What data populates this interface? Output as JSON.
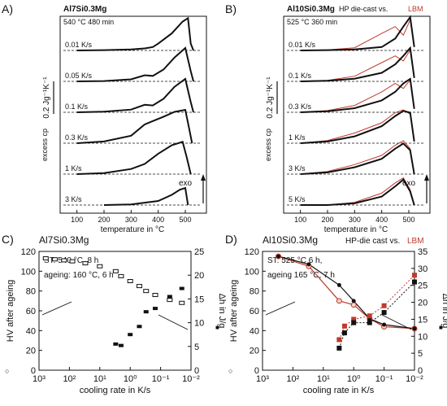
{
  "colors": {
    "die_cast": "#111111",
    "lbm": "#c0392b",
    "baseline": "#111111"
  },
  "chart_data": [
    {
      "panel": "A)",
      "type": "line",
      "title": "Al7Si0.3Mg",
      "subtitle": "540 °C  480 min",
      "xlabel": "temperature in °C",
      "ylabel": "excess cp",
      "scale_label": "0.2 Jg⁻¹K⁻¹",
      "annotation": "exo",
      "xlim": [
        50,
        560
      ],
      "xticks": [
        100,
        200,
        300,
        400,
        500
      ],
      "series": [
        {
          "name": "0.01 K/s",
          "x": [
            100,
            200,
            300,
            350,
            380,
            400,
            450,
            490,
            510,
            520,
            530
          ],
          "y": [
            0.0,
            0.01,
            0.03,
            0.06,
            0.1,
            0.2,
            0.5,
            0.85,
            0.95,
            0.2,
            0.0
          ]
        },
        {
          "name": "0.05 K/s",
          "x": [
            100,
            200,
            300,
            350,
            380,
            420,
            460,
            500,
            520,
            530
          ],
          "y": [
            0.0,
            0.01,
            0.06,
            0.18,
            0.16,
            0.35,
            0.7,
            0.98,
            0.3,
            0.0
          ]
        },
        {
          "name": "0.1 K/s",
          "x": [
            100,
            200,
            300,
            350,
            380,
            420,
            460,
            500,
            520,
            530
          ],
          "y": [
            0.0,
            0.02,
            0.08,
            0.22,
            0.2,
            0.4,
            0.75,
            0.98,
            0.3,
            0.0
          ]
        },
        {
          "name": "0.3 K/s",
          "x": [
            100,
            200,
            300,
            350,
            380,
            420,
            460,
            500,
            515,
            525
          ],
          "y": [
            0.0,
            0.05,
            0.22,
            0.55,
            0.65,
            0.78,
            0.92,
            0.98,
            0.4,
            0.0
          ]
        },
        {
          "name": "1 K/s",
          "x": [
            100,
            200,
            300,
            350,
            400,
            450,
            490,
            505,
            520
          ],
          "y": [
            0.0,
            0.03,
            0.15,
            0.3,
            0.6,
            0.85,
            0.95,
            0.5,
            0.0
          ]
        },
        {
          "name": "3 K/s",
          "x": [
            200,
            300,
            400,
            450,
            480,
            500,
            510
          ],
          "y": [
            0.0,
            0.02,
            0.12,
            0.3,
            0.45,
            0.5,
            0.0
          ]
        }
      ]
    },
    {
      "panel": "B)",
      "type": "line",
      "title": "Al10Si0.3Mg",
      "title_suffix": "HP die-cast vs.",
      "title_highlight": "LBM",
      "subtitle": "525 °C  360 min",
      "xlabel": "temperature in °C",
      "ylabel": "excess cp",
      "scale_label": "0.2 Jg⁻¹K⁻¹",
      "annotation": "exo",
      "xlim": [
        50,
        560
      ],
      "xticks": [
        100,
        200,
        300,
        400,
        500
      ],
      "series": [
        {
          "name": "0.01 K/s",
          "die_cast_y": [
            0.0,
            0.01,
            0.03,
            0.1,
            0.35,
            0.7,
            0.98,
            0.1
          ],
          "lbm_y": [
            0.0,
            0.02,
            0.08,
            0.5,
            0.7,
            0.45,
            0.9,
            0.1
          ]
        },
        {
          "name": "0.1 K/s",
          "die_cast_y": [
            0.0,
            0.02,
            0.08,
            0.25,
            0.5,
            0.75,
            0.98,
            0.1
          ],
          "lbm_y": [
            0.0,
            0.03,
            0.15,
            0.55,
            0.75,
            0.6,
            0.92,
            0.1
          ]
        },
        {
          "name": "0.3 K/s",
          "die_cast_y": [
            0.0,
            0.03,
            0.12,
            0.35,
            0.6,
            0.85,
            0.98,
            0.1
          ],
          "lbm_y": [
            0.0,
            0.05,
            0.2,
            0.6,
            0.85,
            0.7,
            0.95,
            0.1
          ]
        },
        {
          "name": "1 K/s",
          "die_cast_y": [
            0.0,
            0.05,
            0.2,
            0.5,
            0.8,
            0.95,
            0.9,
            0.05
          ],
          "lbm_y": [
            0.0,
            0.08,
            0.3,
            0.6,
            0.9,
            0.98,
            0.85,
            0.05
          ]
        },
        {
          "name": "3 K/s",
          "die_cast_y": [
            0.0,
            0.05,
            0.2,
            0.45,
            0.75,
            0.9,
            0.7,
            0.0
          ],
          "lbm_y": [
            0.0,
            0.08,
            0.28,
            0.55,
            0.85,
            0.98,
            0.75,
            0.0
          ]
        },
        {
          "name": "5 K/s",
          "die_cast_y": [
            0.0,
            0.0,
            0.05,
            0.25,
            0.55,
            0.75,
            0.4,
            0.0
          ],
          "lbm_y": [
            0.0,
            0.0,
            0.08,
            0.35,
            0.65,
            0.8,
            0.45,
            0.0
          ]
        }
      ],
      "x": [
        100,
        200,
        300,
        400,
        450,
        480,
        505,
        520
      ]
    },
    {
      "panel": "C)",
      "type": "scatter",
      "title": "Al7Si0.3Mg",
      "notes": [
        "ST: 540 °C, 8 h",
        "ageing: 160 °C, 6 h"
      ],
      "xlabel": "cooling rate in K/s",
      "ylabel_left": "HV after ageing",
      "ylabel_right": "Δh in J/g",
      "x_scale": "log (reversed)",
      "xticks": [
        "10³",
        "10²",
        "10¹",
        "10⁰",
        "10⁻¹",
        "10⁻²"
      ],
      "ylim_left": [
        0,
        120
      ],
      "yticks_left": [
        0,
        20,
        40,
        60,
        80,
        100,
        120
      ],
      "ylim_right": [
        0,
        25
      ],
      "yticks_right": [
        0,
        5,
        10,
        15,
        20,
        25
      ],
      "series": [
        {
          "name": "HV",
          "x": [
            600,
            300,
            150,
            80,
            30,
            10,
            3,
            2,
            1,
            0.5,
            0.3,
            0.15,
            0.05,
            0.02
          ],
          "y": [
            113,
            112,
            111,
            110,
            108,
            105,
            100,
            95,
            90,
            85,
            80,
            76,
            71,
            68
          ]
        },
        {
          "name": "Δh",
          "x": [
            3,
            2,
            1,
            0.5,
            0.3,
            0.15,
            0.05,
            0.02
          ],
          "y": [
            5.5,
            5.2,
            7.5,
            9.2,
            12.3,
            13.0,
            15.5,
            17.2
          ]
        }
      ],
      "legend_left": "○",
      "legend_right": "■"
    },
    {
      "panel": "D)",
      "type": "scatter",
      "title": "Al10Si0.3Mg",
      "title_suffix": "HP-die cast vs.",
      "title_highlight": "LBM",
      "notes": [
        "ST: 525 °C 6 h,",
        "ageing 165 °C, 7 h"
      ],
      "xlabel": "cooling rate in K/s",
      "ylabel_left": "HV after ageing",
      "ylabel_right": "Δh in J/g",
      "x_scale": "log (reversed)",
      "xticks": [
        "10³",
        "10²",
        "10¹",
        "10⁰",
        "10⁻¹",
        "10⁻²"
      ],
      "ylim_left": [
        0,
        120
      ],
      "yticks_left": [
        0,
        20,
        40,
        60,
        80,
        100,
        120
      ],
      "ylim_right": [
        0,
        35
      ],
      "yticks_right": [
        0,
        5,
        10,
        15,
        20,
        25,
        30,
        35
      ],
      "series": [
        {
          "name": "HV die-cast",
          "x": [
            300,
            30,
            3,
            1,
            0.3,
            0.1,
            0.01
          ],
          "y": [
            115,
            107,
            86,
            70,
            52,
            46,
            42
          ]
        },
        {
          "name": "HV LBM",
          "x": [
            300,
            30,
            3,
            1,
            0.3,
            0.1,
            0.01
          ],
          "y": [
            115,
            105,
            70,
            66,
            52,
            44,
            42
          ]
        },
        {
          "name": "Δh die-cast",
          "x": [
            3,
            2,
            1,
            0.3,
            0.1,
            0.01
          ],
          "y": [
            6.5,
            11,
            14,
            14,
            17,
            26
          ]
        },
        {
          "name": "Δh LBM",
          "x": [
            3,
            2,
            1,
            0.3,
            0.1,
            0.01
          ],
          "y": [
            9,
            13,
            15,
            16,
            19,
            28
          ]
        }
      ],
      "legend_left": "○",
      "legend_right": "■"
    }
  ]
}
